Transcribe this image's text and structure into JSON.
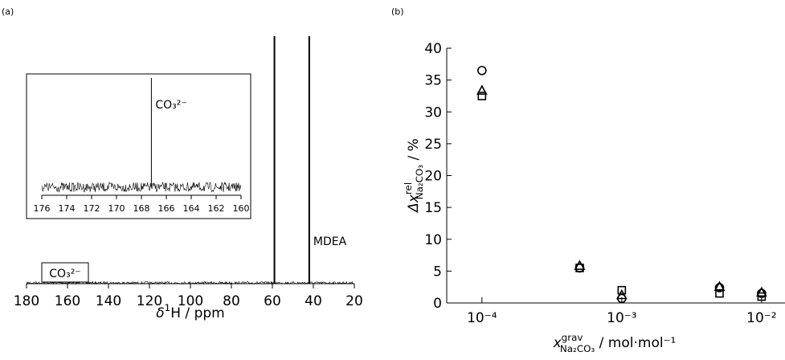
{
  "chart_data": [
    {
      "type": "spectrum",
      "panel": "(a)",
      "xlim": [
        180,
        20
      ],
      "xticks": [
        180,
        160,
        140,
        120,
        100,
        80,
        60,
        40,
        20
      ],
      "xlabel": {
        "main": "δ",
        "sup": "1",
        "rest": "H / ppm"
      },
      "peaks": [
        {
          "x": 59
        },
        {
          "x": 42,
          "label": "MDEA"
        }
      ],
      "box_label": "CO₃²⁻",
      "inset": {
        "xlim": [
          176,
          160
        ],
        "xticks": [
          176,
          174,
          172,
          170,
          168,
          166,
          164,
          162,
          160
        ],
        "peak": 167.2,
        "peak_label": "CO₃²⁻"
      },
      "color": "#000000"
    },
    {
      "type": "scatter",
      "panel": "(b)",
      "xscale": "log",
      "xlim": [
        5.6e-05,
        0.0147
      ],
      "xticks": [
        {
          "value": 0.0001,
          "label": "10⁻⁴"
        },
        {
          "value": 0.001,
          "label": "10⁻³"
        },
        {
          "value": 0.01,
          "label": "10⁻²"
        }
      ],
      "ylim": [
        0,
        40
      ],
      "yticks": [
        0,
        5,
        10,
        15,
        20,
        25,
        30,
        35,
        40
      ],
      "ylabel": {
        "main": "Δx",
        "sup": "rel",
        "sub": "Na₂CO₃",
        "rest": " / %"
      },
      "xlabel": {
        "main": "x",
        "sup": "grav",
        "sub": "Na₂CO₃",
        "rest": " / mol·mol⁻¹"
      },
      "x": [
        0.0001,
        0.0005,
        0.001,
        0.005,
        0.01
      ],
      "series": [
        {
          "marker": "circle",
          "color": "#000000",
          "values": [
            36.5,
            5.5,
            0.7,
            2.4,
            1.5
          ]
        },
        {
          "marker": "triangle",
          "color": "#000000",
          "values": [
            33.3,
            5.8,
            1.2,
            2.5,
            1.6
          ]
        },
        {
          "marker": "square",
          "color": "#000000",
          "values": [
            32.5,
            5.5,
            2.0,
            1.5,
            1.0
          ]
        }
      ]
    }
  ]
}
